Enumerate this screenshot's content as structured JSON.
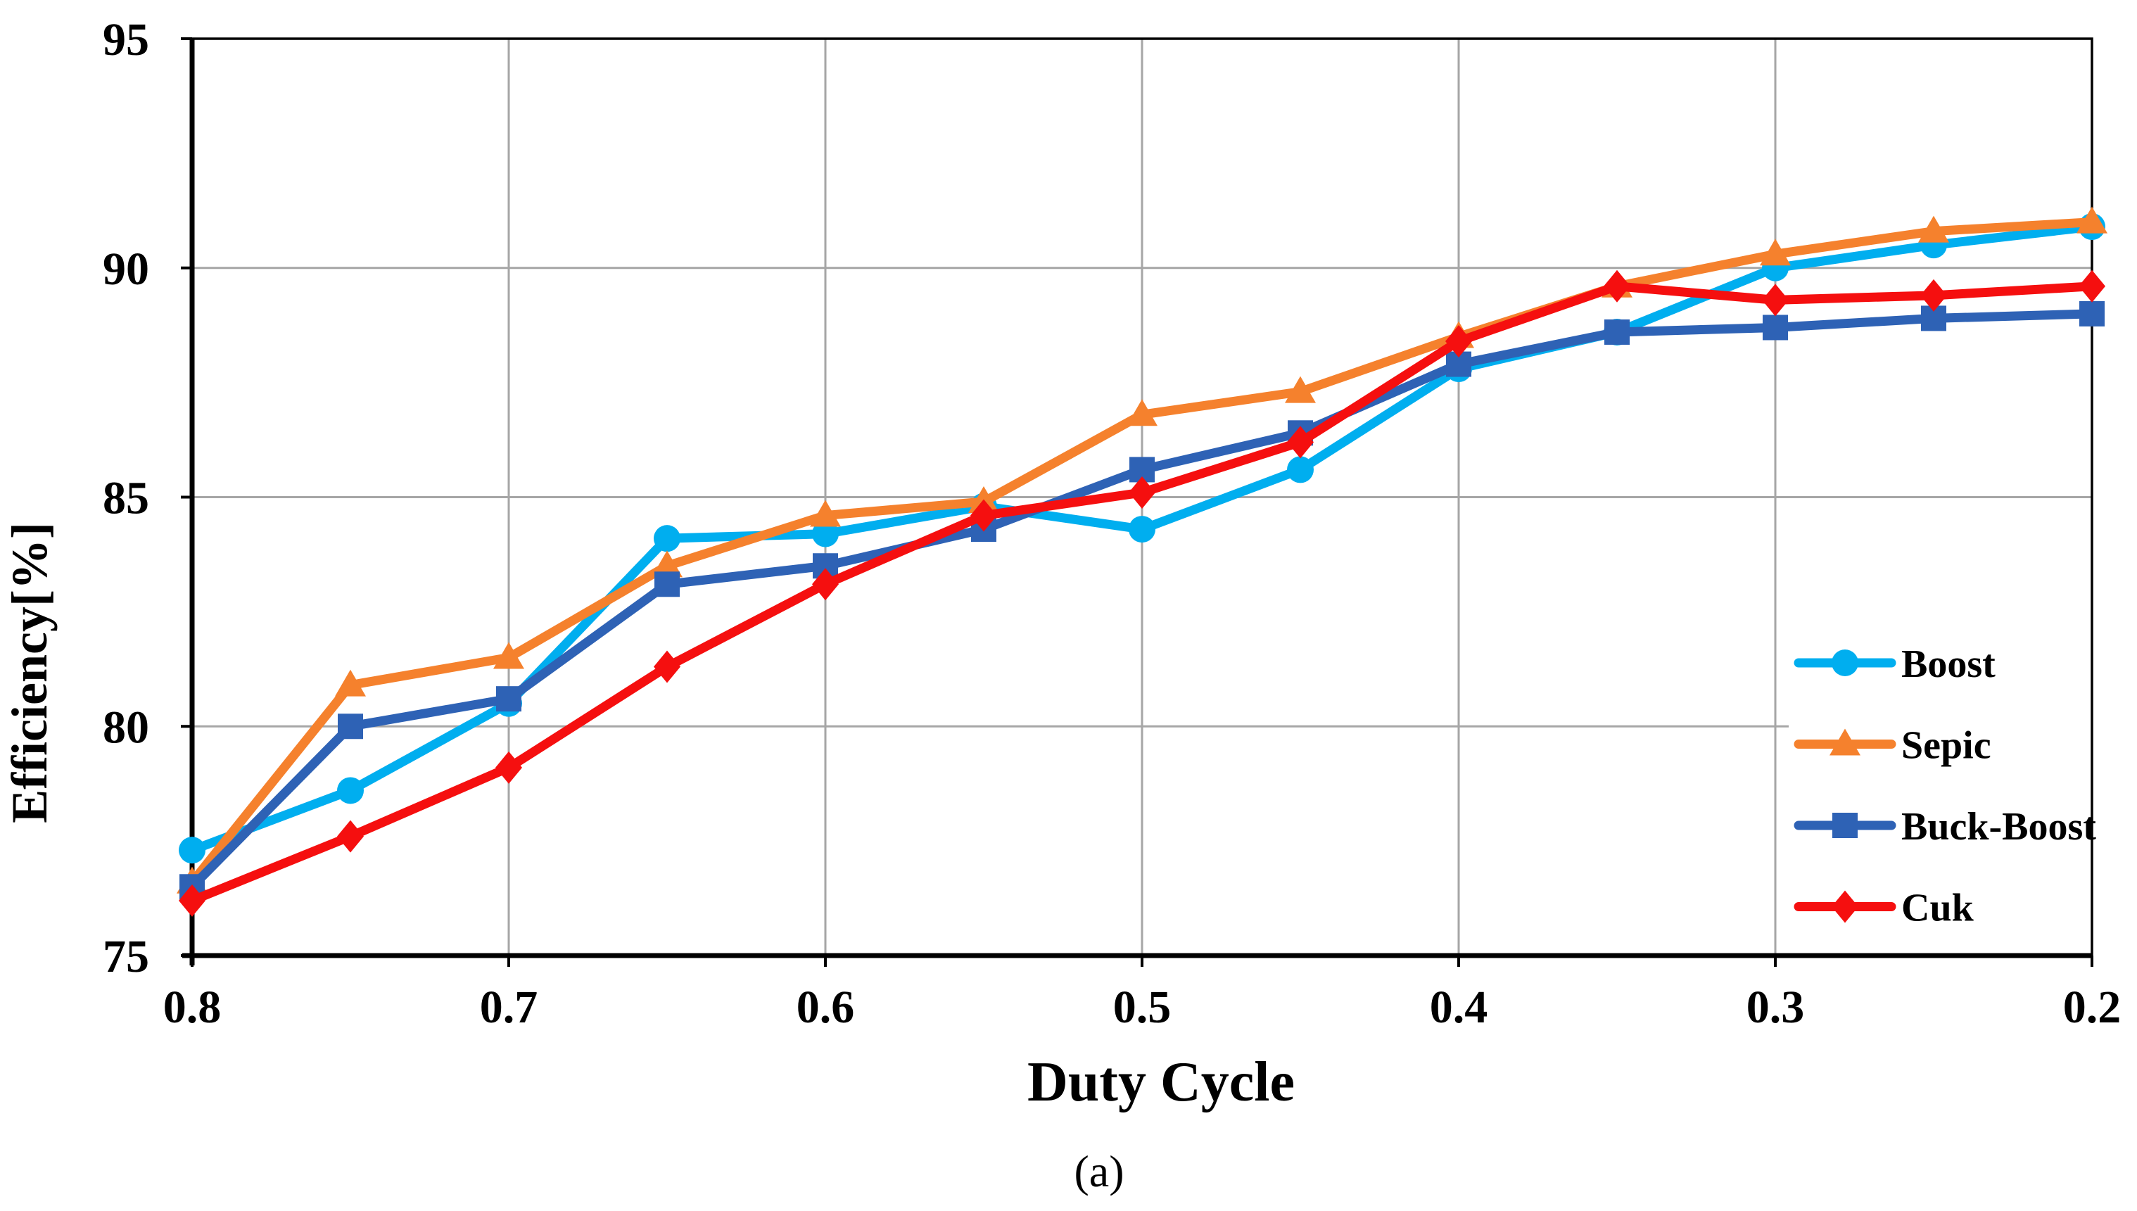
{
  "figure": {
    "caption": "(a)"
  },
  "chart_data": {
    "type": "line",
    "title": "",
    "xlabel": "Duty Cycle",
    "ylabel": "Efficiency[%]",
    "x_axis_reversed": true,
    "xlim": [
      0.8,
      0.2
    ],
    "ylim": [
      75,
      95
    ],
    "x": [
      0.8,
      0.75,
      0.7,
      0.65,
      0.6,
      0.55,
      0.5,
      0.45,
      0.4,
      0.35,
      0.3,
      0.25,
      0.2
    ],
    "x_tick_values": [
      0.8,
      0.7,
      0.6,
      0.5,
      0.4,
      0.3,
      0.2
    ],
    "x_tick_labels": [
      "0.8",
      "0.7",
      "0.6",
      "0.5",
      "0.4",
      "0.3",
      "0.2"
    ],
    "y_tick_values": [
      75,
      80,
      85,
      90,
      95
    ],
    "y_tick_labels": [
      "75",
      "80",
      "85",
      "90",
      "95"
    ],
    "grid": {
      "horizontal_at": [
        80,
        85,
        90
      ],
      "vertical_at": [
        0.7,
        0.6,
        0.5,
        0.4,
        0.3
      ],
      "color": "#A6A6A6"
    },
    "axis_color": "#000000",
    "background": "#FFFFFF",
    "legend": {
      "position": "inside-right"
    },
    "series": [
      {
        "name": "Boost",
        "color": "#00AEEF",
        "marker": "circle",
        "values": [
          77.3,
          78.6,
          80.5,
          84.1,
          84.2,
          84.8,
          84.3,
          85.6,
          87.8,
          88.6,
          90.0,
          90.5,
          90.9
        ]
      },
      {
        "name": "Sepic",
        "color": "#F5812D",
        "marker": "triangle",
        "values": [
          76.6,
          80.9,
          81.5,
          83.5,
          84.6,
          84.9,
          86.8,
          87.3,
          88.5,
          89.6,
          90.3,
          90.8,
          91.0
        ]
      },
      {
        "name": "Buck-Boost",
        "color": "#2E62B5",
        "marker": "square",
        "values": [
          76.5,
          80.0,
          80.6,
          83.1,
          83.5,
          84.3,
          85.6,
          86.4,
          87.9,
          88.6,
          88.7,
          88.9,
          89.0
        ]
      },
      {
        "name": "Cuk",
        "color": "#F50F0F",
        "marker": "diamond",
        "values": [
          76.2,
          77.6,
          79.1,
          81.3,
          83.1,
          84.6,
          85.1,
          86.2,
          88.4,
          89.6,
          89.3,
          89.4,
          89.6
        ]
      }
    ]
  }
}
